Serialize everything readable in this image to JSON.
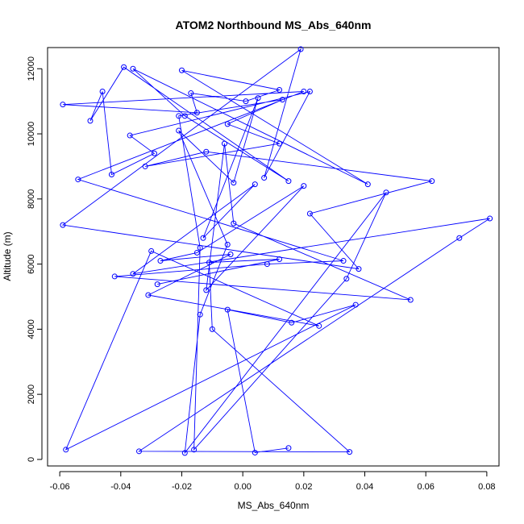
{
  "chart_data": {
    "type": "scatter",
    "title": "ATOM2 Northbound MS_Abs_640nm",
    "xlabel": "MS_Abs_640nm",
    "ylabel": "Altitude (m)",
    "xlim": [
      -0.064,
      0.084
    ],
    "ylim": [
      -200,
      12650
    ],
    "xticks": [
      -0.06,
      -0.04,
      -0.02,
      0.0,
      0.02,
      0.04,
      0.06,
      0.08
    ],
    "xtick_labels": [
      "-0.06",
      "-0.04",
      "-0.02",
      "0.00",
      "0.02",
      "0.04",
      "0.06",
      "0.08"
    ],
    "yticks": [
      0,
      2000,
      4000,
      6000,
      8000,
      10000,
      12000
    ],
    "ytick_labels": [
      "0",
      "2000",
      "4000",
      "6000",
      "8000",
      "10000",
      "12000"
    ],
    "grid": false,
    "legend": false,
    "series_color": "#0000ff",
    "series": [
      {
        "x": [
          0.015,
          0.004,
          -0.005,
          0.016,
          0.037,
          -0.058,
          -0.03,
          0.025,
          -0.031,
          -0.004,
          -0.027,
          -0.015,
          0.02,
          -0.012,
          -0.006,
          -0.003,
          0.055,
          -0.042,
          0.008,
          0.033,
          -0.054,
          0.02,
          -0.059,
          -0.015,
          -0.017,
          0.001,
          0.012,
          -0.02,
          0.041,
          -0.036,
          -0.019,
          0.015,
          -0.039,
          -0.05,
          -0.046,
          -0.043,
          -0.029,
          -0.037,
          0.022,
          0.007,
          0.019,
          -0.059,
          0.038,
          0.022,
          0.062,
          -0.012,
          -0.032,
          0.012,
          -0.005,
          0.013,
          -0.021,
          -0.014,
          -0.016,
          0.034,
          0.047,
          -0.019,
          -0.014,
          -0.005,
          -0.021,
          -0.003,
          0.005,
          -0.013,
          0.004,
          -0.036,
          0.081,
          0.071,
          -0.034,
          0.035,
          -0.01,
          -0.011,
          0.012,
          -0.028
        ],
        "y": [
          350,
          210,
          4600,
          4200,
          4750,
          300,
          6400,
          4100,
          5050,
          6300,
          6100,
          6350,
          8400,
          5200,
          9700,
          7250,
          4900,
          5620,
          6000,
          6100,
          8600,
          11300,
          10900,
          10650,
          11250,
          11000,
          11350,
          11950,
          8450,
          12000,
          10550,
          8550,
          12050,
          10400,
          11300,
          8750,
          9400,
          9950,
          11300,
          8650,
          12600,
          7200,
          5850,
          7550,
          8550,
          9450,
          9000,
          9700,
          10300,
          11050,
          10550,
          6500,
          300,
          5550,
          8200,
          200,
          4450,
          6600,
          10100,
          8500,
          11100,
          6800,
          8450,
          5700,
          7400,
          6800,
          250,
          230,
          4000,
          6050,
          6150,
          5380
        ]
      }
    ]
  }
}
